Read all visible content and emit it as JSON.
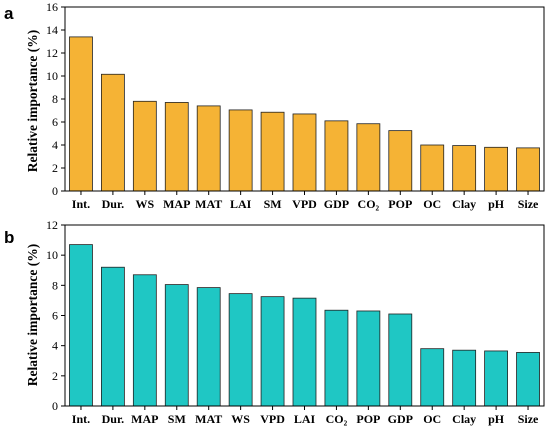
{
  "chart_data": [
    {
      "panel_label": "a",
      "type": "bar",
      "categories": [
        "Int.",
        "Dur.",
        "WS",
        "MAP",
        "MAT",
        "LAI",
        "SM",
        "VPD",
        "GDP",
        "CO₂",
        "POP",
        "OC",
        "Clay",
        "pH",
        "Size"
      ],
      "values": [
        13.4,
        10.15,
        7.8,
        7.7,
        7.4,
        7.05,
        6.85,
        6.7,
        6.1,
        5.85,
        5.25,
        4.0,
        3.95,
        3.8,
        3.75
      ],
      "xlabel": "",
      "ylabel": "Relative importance (%)",
      "ylim": [
        0,
        16
      ],
      "yticks": [
        0,
        2,
        4,
        6,
        8,
        10,
        12,
        14,
        16
      ],
      "bar_color": "#F5B335",
      "grid": false
    },
    {
      "panel_label": "b",
      "type": "bar",
      "categories": [
        "Int.",
        "Dur.",
        "MAP",
        "SM",
        "MAT",
        "WS",
        "VPD",
        "LAI",
        "CO₂",
        "POP",
        "GDP",
        "OC",
        "Clay",
        "pH",
        "Size"
      ],
      "values": [
        10.7,
        9.2,
        8.7,
        8.05,
        7.85,
        7.45,
        7.25,
        7.15,
        6.35,
        6.3,
        6.1,
        3.8,
        3.7,
        3.65,
        3.55
      ],
      "xlabel": "",
      "ylabel": "Relative importance (%)",
      "ylim": [
        0,
        12
      ],
      "yticks": [
        0,
        2,
        4,
        6,
        8,
        10,
        12
      ],
      "bar_color": "#1FC7C4",
      "grid": false
    }
  ]
}
